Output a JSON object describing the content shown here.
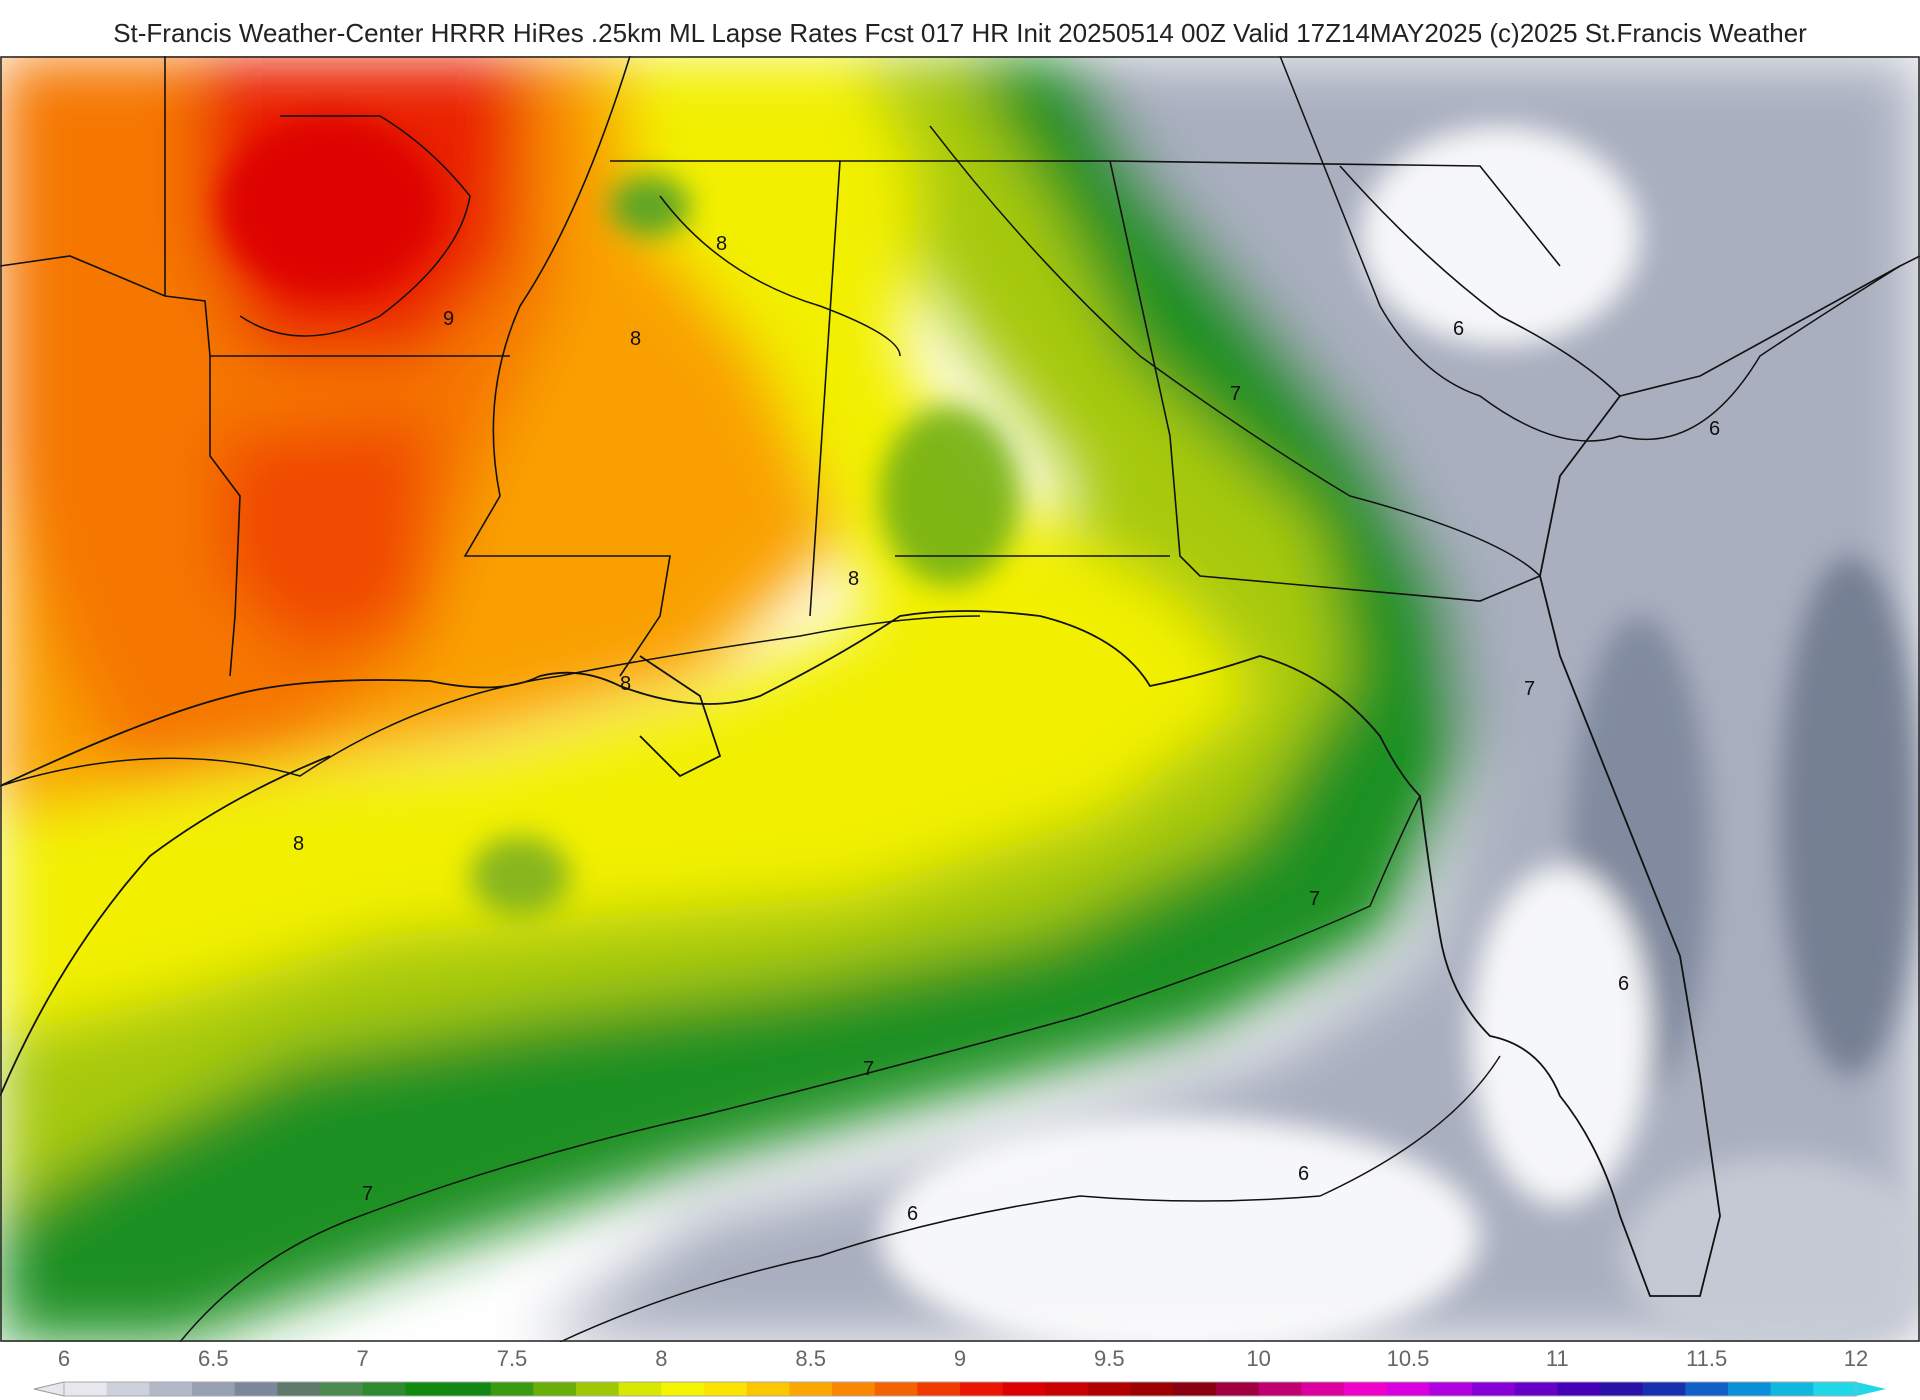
{
  "header": {
    "title": "St-Francis Weather-Center HRRR HiRes .25km ML Lapse Rates  Fcst 017 HR Init 20250514 00Z  Valid 17Z14MAY2025    (c)2025 St.Francis Weather"
  },
  "map": {
    "field": "ML Lapse Rates",
    "region": "Southeastern United States and Gulf of Mexico",
    "contour_labels": [
      {
        "text": "9"
      },
      {
        "text": "8"
      },
      {
        "text": "8"
      },
      {
        "text": "8"
      },
      {
        "text": "8"
      },
      {
        "text": "8"
      },
      {
        "text": "7"
      },
      {
        "text": "7"
      },
      {
        "text": "7"
      },
      {
        "text": "7"
      },
      {
        "text": "7"
      },
      {
        "text": "6"
      },
      {
        "text": "6"
      },
      {
        "text": "6"
      },
      {
        "text": "6"
      },
      {
        "text": "6"
      }
    ]
  },
  "legend": {
    "ticks": [
      "6",
      "6.5",
      "7",
      "7.5",
      "8",
      "8.5",
      "9",
      "9.5",
      "10",
      "10.5",
      "11",
      "11.5",
      "12"
    ],
    "colors": [
      "#e6e8ee",
      "#cdd1dc",
      "#b2b8c8",
      "#97a0b3",
      "#7d879b",
      "#5f7a6a",
      "#4c8a52",
      "#2f8a2f",
      "#108b10",
      "#128812",
      "#3a9a10",
      "#6aae08",
      "#a0c802",
      "#d8e800",
      "#f6f500",
      "#fde400",
      "#fdc700",
      "#fca800",
      "#f98700",
      "#f56300",
      "#f03a00",
      "#ea1500",
      "#dc0000",
      "#c80000",
      "#b20000",
      "#9c0000",
      "#8a0010",
      "#a00040",
      "#c00070",
      "#dd00a0",
      "#f000c8",
      "#d800e0",
      "#b000e0",
      "#8800d8",
      "#6600c8",
      "#4400b8",
      "#2a10a8",
      "#1830b0",
      "#1060c8",
      "#0a90d8",
      "#10b8e0",
      "#20d8e8"
    ]
  }
}
